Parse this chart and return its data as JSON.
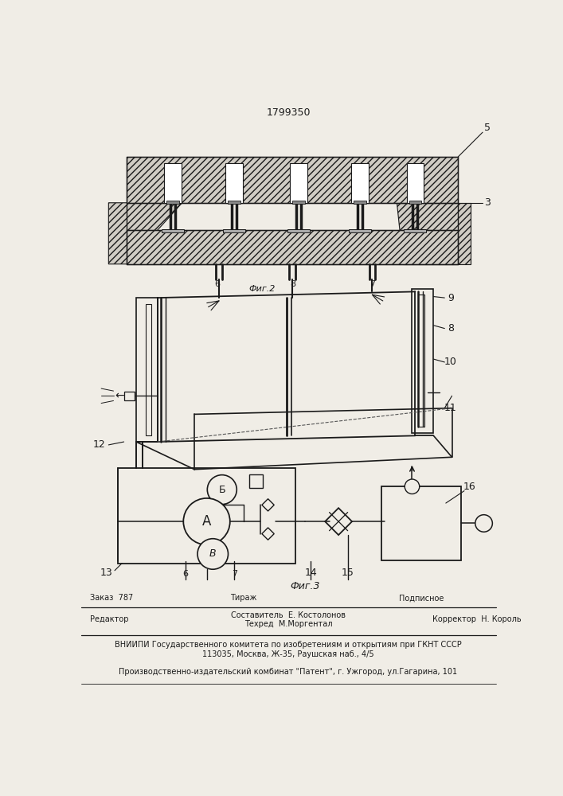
{
  "title": "1799350",
  "fig2_label": "Фиг.2",
  "fig3_label": "Фиг.3",
  "bg_color": "#f0ede6",
  "line_color": "#1a1a1a",
  "footer_line1_left": "Редактор",
  "footer_line1_center1": "Составитель  Е. Костолонов",
  "footer_line1_center2": "Техред  М.Моргентал",
  "footer_line1_right": "Корректор  Н. Король",
  "footer_line2_left": "Заказ  787",
  "footer_line2_center": "Тираж",
  "footer_line2_right": "Подписное",
  "footer_line3": "ВНИИПИ Государственного комитета по изобретениям и открытиям при ГКНТ СССР",
  "footer_line4": "113035, Москва, Ж-35, Раушская наб., 4/5",
  "footer_line5": "Производственно-издательский комбинат \"Патент\", г. Ужгород, ул.Гагарина, 101"
}
